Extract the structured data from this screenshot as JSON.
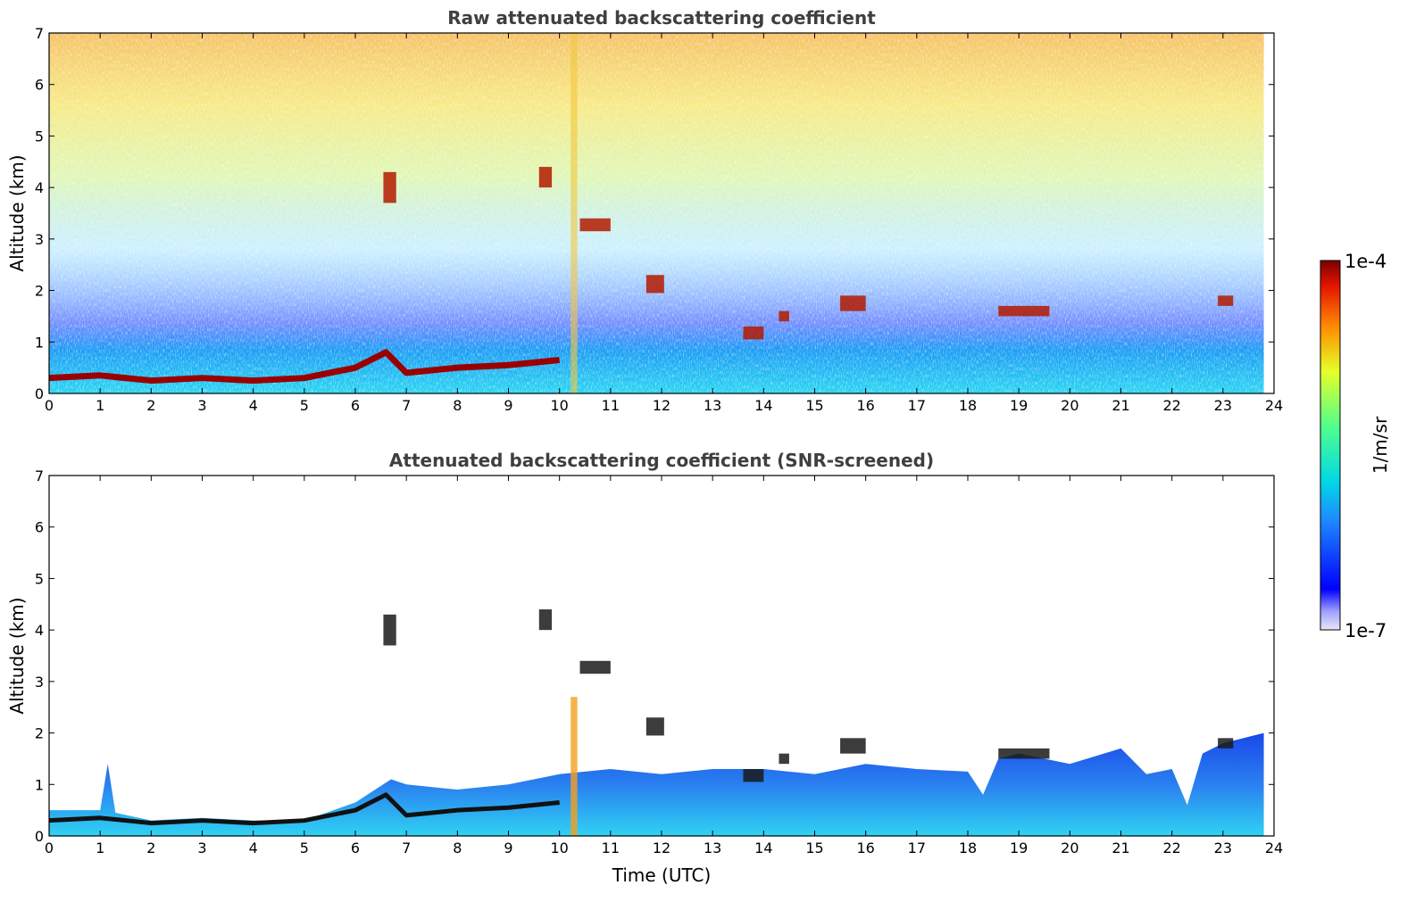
{
  "chart_data": [
    {
      "type": "heatmap",
      "title": "Raw attenuated backscattering coefficient",
      "xlabel": "",
      "ylabel": "Altitude (km)",
      "xlim": [
        0,
        24
      ],
      "ylim": [
        0,
        7
      ],
      "xticks": [
        "0",
        "1",
        "2",
        "3",
        "4",
        "5",
        "6",
        "7",
        "8",
        "9",
        "10",
        "11",
        "12",
        "13",
        "14",
        "15",
        "16",
        "17",
        "18",
        "19",
        "20",
        "21",
        "22",
        "23",
        "24"
      ],
      "yticks": [
        "0",
        "1",
        "2",
        "3",
        "4",
        "5",
        "6",
        "7"
      ],
      "data_end_hour": 23.8,
      "boundary_layer_top_km": [
        [
          0,
          0.3
        ],
        [
          1,
          0.35
        ],
        [
          2,
          0.25
        ],
        [
          3,
          0.3
        ],
        [
          4,
          0.25
        ],
        [
          5,
          0.3
        ],
        [
          6,
          0.5
        ],
        [
          6.6,
          0.8
        ],
        [
          7,
          0.4
        ],
        [
          8,
          0.5
        ],
        [
          9,
          0.55
        ],
        [
          10,
          0.65
        ]
      ],
      "cloud_features": [
        {
          "t_start": 6.55,
          "t_end": 6.8,
          "alt_top_km": 4.3,
          "alt_bottom_km": 3.7
        },
        {
          "t_start": 9.6,
          "t_end": 9.85,
          "alt_top_km": 4.4,
          "alt_bottom_km": 4.0
        },
        {
          "t_start": 10.4,
          "t_end": 11.0,
          "alt_top_km": 3.4,
          "alt_bottom_km": 3.15
        },
        {
          "t_start": 11.7,
          "t_end": 12.05,
          "alt_top_km": 2.3,
          "alt_bottom_km": 1.95
        },
        {
          "t_start": 13.6,
          "t_end": 14.0,
          "alt_top_km": 1.3,
          "alt_bottom_km": 1.05
        },
        {
          "t_start": 14.3,
          "t_end": 14.5,
          "alt_top_km": 1.6,
          "alt_bottom_km": 1.4
        },
        {
          "t_start": 15.5,
          "t_end": 16.0,
          "alt_top_km": 1.9,
          "alt_bottom_km": 1.6
        },
        {
          "t_start": 18.6,
          "t_end": 19.6,
          "alt_top_km": 1.7,
          "alt_bottom_km": 1.5
        },
        {
          "t_start": 22.9,
          "t_end": 23.2,
          "alt_top_km": 1.9,
          "alt_bottom_km": 1.7
        }
      ]
    },
    {
      "type": "heatmap",
      "title": "Attenuated backscattering coefficient (SNR-screened)",
      "xlabel": "Time (UTC)",
      "ylabel": "Altitude (km)",
      "xlim": [
        0,
        24
      ],
      "ylim": [
        0,
        7
      ],
      "xticks": [
        "0",
        "1",
        "2",
        "3",
        "4",
        "5",
        "6",
        "7",
        "8",
        "9",
        "10",
        "11",
        "12",
        "13",
        "14",
        "15",
        "16",
        "17",
        "18",
        "19",
        "20",
        "21",
        "22",
        "23",
        "24"
      ],
      "yticks": [
        "0",
        "1",
        "2",
        "3",
        "4",
        "5",
        "6",
        "7"
      ],
      "data_end_hour": 23.8,
      "signal_top_km": [
        [
          0,
          0.5
        ],
        [
          1,
          0.5
        ],
        [
          1.15,
          1.4
        ],
        [
          1.3,
          0.45
        ],
        [
          2,
          0.3
        ],
        [
          3,
          0.35
        ],
        [
          4,
          0.3
        ],
        [
          5,
          0.3
        ],
        [
          6,
          0.65
        ],
        [
          6.7,
          1.1
        ],
        [
          7,
          1.0
        ],
        [
          8,
          0.9
        ],
        [
          9,
          1.0
        ],
        [
          10,
          1.2
        ],
        [
          11,
          1.3
        ],
        [
          12,
          1.2
        ],
        [
          13,
          1.3
        ],
        [
          14,
          1.3
        ],
        [
          15,
          1.2
        ],
        [
          16,
          1.4
        ],
        [
          17,
          1.3
        ],
        [
          18,
          1.25
        ],
        [
          18.3,
          0.8
        ],
        [
          18.6,
          1.5
        ],
        [
          19,
          1.6
        ],
        [
          20,
          1.4
        ],
        [
          21,
          1.7
        ],
        [
          21.5,
          1.2
        ],
        [
          22,
          1.3
        ],
        [
          22.3,
          0.6
        ],
        [
          22.6,
          1.6
        ],
        [
          23,
          1.8
        ],
        [
          23.8,
          2.0
        ]
      ]
    }
  ],
  "colorbar": {
    "label": "1/m/sr",
    "max_label": "1e-4",
    "min_label": "1e-7",
    "scale": "log",
    "colormap": "jet"
  }
}
